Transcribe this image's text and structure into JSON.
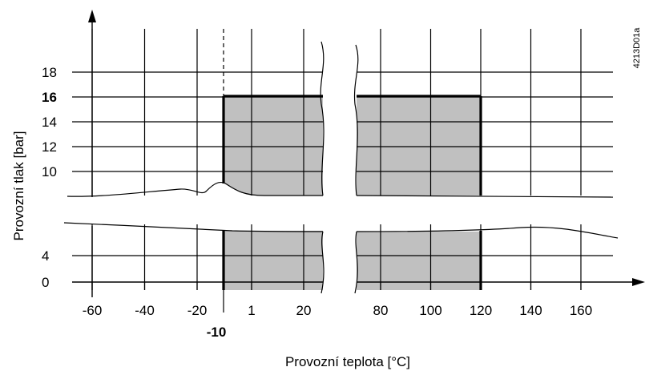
{
  "chart_data": {
    "type": "area",
    "xlabel": "Provozní teplota [°C]",
    "ylabel": "Provozní tlak [bar]",
    "figure_code": "4213D01a",
    "x_ticks": [
      -60,
      -40,
      -20,
      1,
      20,
      80,
      100,
      120,
      140,
      160
    ],
    "x_tick_labels": [
      "-60",
      "-40",
      "-20",
      "1",
      "20",
      "80",
      "100",
      "120",
      "140",
      "160"
    ],
    "x_marked_tick": {
      "value": -10,
      "label": "-10"
    },
    "y_ticks_upper": [
      10,
      12,
      14,
      16,
      18
    ],
    "y_tick_labels_upper": [
      "10",
      "12",
      "14",
      "16",
      "18"
    ],
    "y_ticks_lower": [
      0,
      4
    ],
    "y_tick_labels_lower": [
      "0",
      "4"
    ],
    "y_marked_tick": {
      "value": 16,
      "label": "16"
    },
    "operating_region": {
      "t_min": -10,
      "t_max": 120,
      "p_min": 0,
      "p_max": 16,
      "fill": "#c0c0c0"
    },
    "axis_breaks": {
      "x": true,
      "y": true
    },
    "grid": true
  }
}
